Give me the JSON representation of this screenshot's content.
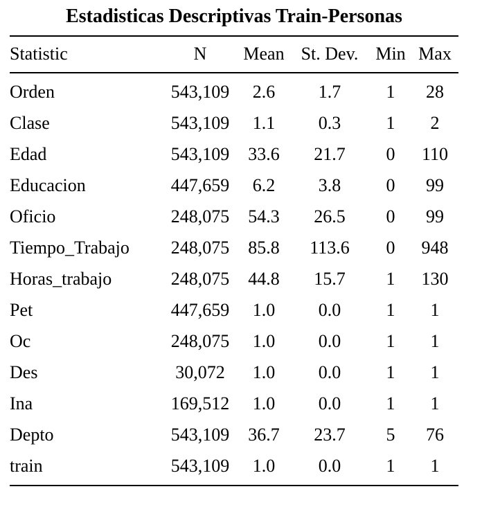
{
  "title": "Estadisticas Descriptivas Train-Personas",
  "columns": [
    "Statistic",
    "N",
    "Mean",
    "St. Dev.",
    "Min",
    "Max"
  ],
  "rows": [
    [
      "Orden",
      "543,109",
      "2.6",
      "1.7",
      "1",
      "28"
    ],
    [
      "Clase",
      "543,109",
      "1.1",
      "0.3",
      "1",
      "2"
    ],
    [
      "Edad",
      "543,109",
      "33.6",
      "21.7",
      "0",
      "110"
    ],
    [
      "Educacion",
      "447,659",
      "6.2",
      "3.8",
      "0",
      "99"
    ],
    [
      "Oficio",
      "248,075",
      "54.3",
      "26.5",
      "0",
      "99"
    ],
    [
      "Tiempo_Trabajo",
      "248,075",
      "85.8",
      "113.6",
      "0",
      "948"
    ],
    [
      "Horas_trabajo",
      "248,075",
      "44.8",
      "15.7",
      "1",
      "130"
    ],
    [
      "Pet",
      "447,659",
      "1.0",
      "0.0",
      "1",
      "1"
    ],
    [
      "Oc",
      "248,075",
      "1.0",
      "0.0",
      "1",
      "1"
    ],
    [
      "Des",
      "30,072",
      "1.0",
      "0.0",
      "1",
      "1"
    ],
    [
      "Ina",
      "169,512",
      "1.0",
      "0.0",
      "1",
      "1"
    ],
    [
      "Depto",
      "543,109",
      "36.7",
      "23.7",
      "5",
      "76"
    ],
    [
      "train",
      "543,109",
      "1.0",
      "0.0",
      "1",
      "1"
    ]
  ]
}
